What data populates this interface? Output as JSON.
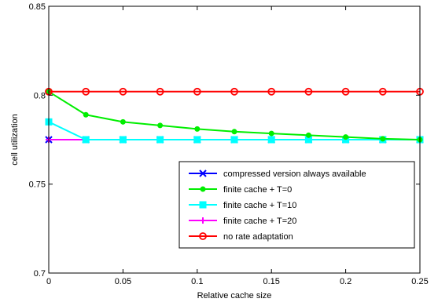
{
  "chart_data": {
    "type": "line",
    "xlabel": "Relative cache size",
    "ylabel": "cell utilization",
    "xlim": [
      0,
      0.25
    ],
    "ylim": [
      0.7,
      0.85
    ],
    "grid": false,
    "legend_position": "bottom-right",
    "x": [
      0,
      0.025,
      0.05,
      0.075,
      0.1,
      0.125,
      0.15,
      0.175,
      0.2,
      0.225,
      0.25
    ],
    "x_ticks": [
      {
        "value": 0,
        "label": "0"
      },
      {
        "value": 0.05,
        "label": "0.05"
      },
      {
        "value": 0.1,
        "label": "0.1"
      },
      {
        "value": 0.15,
        "label": "0.15"
      },
      {
        "value": 0.2,
        "label": "0.2"
      },
      {
        "value": 0.25,
        "label": "0.25"
      }
    ],
    "y_ticks": [
      {
        "value": 0.7,
        "label": "0.7"
      },
      {
        "value": 0.75,
        "label": "0.75"
      },
      {
        "value": 0.8,
        "label": "0.8"
      },
      {
        "value": 0.85,
        "label": "0.85"
      }
    ],
    "series": [
      {
        "name": "compressed version always available",
        "color": "#0000ff",
        "marker": "x",
        "values": [
          0.775,
          0.775,
          0.775,
          0.775,
          0.775,
          0.775,
          0.775,
          0.775,
          0.775,
          0.775,
          0.775
        ]
      },
      {
        "name": "finite cache + T=0",
        "color": "#00ee00",
        "marker": "dot",
        "values": [
          0.802,
          0.789,
          0.785,
          0.783,
          0.781,
          0.7795,
          0.7785,
          0.7775,
          0.7765,
          0.7755,
          0.775
        ]
      },
      {
        "name": "finite cache + T=10",
        "color": "#00ffff",
        "marker": "square",
        "values": [
          0.785,
          0.775,
          0.775,
          0.775,
          0.775,
          0.775,
          0.775,
          0.775,
          0.775,
          0.775,
          0.775
        ]
      },
      {
        "name": "finite cache + T=20",
        "color": "#ff00ff",
        "marker": "plus",
        "values": [
          0.775,
          0.775,
          0.775,
          0.775,
          0.775,
          0.775,
          0.775,
          0.775,
          0.775,
          0.775,
          0.775
        ]
      },
      {
        "name": "no rate adaptation",
        "color": "#ff0000",
        "marker": "circle",
        "values": [
          0.802,
          0.802,
          0.802,
          0.802,
          0.802,
          0.802,
          0.802,
          0.802,
          0.802,
          0.802,
          0.802
        ]
      }
    ]
  }
}
